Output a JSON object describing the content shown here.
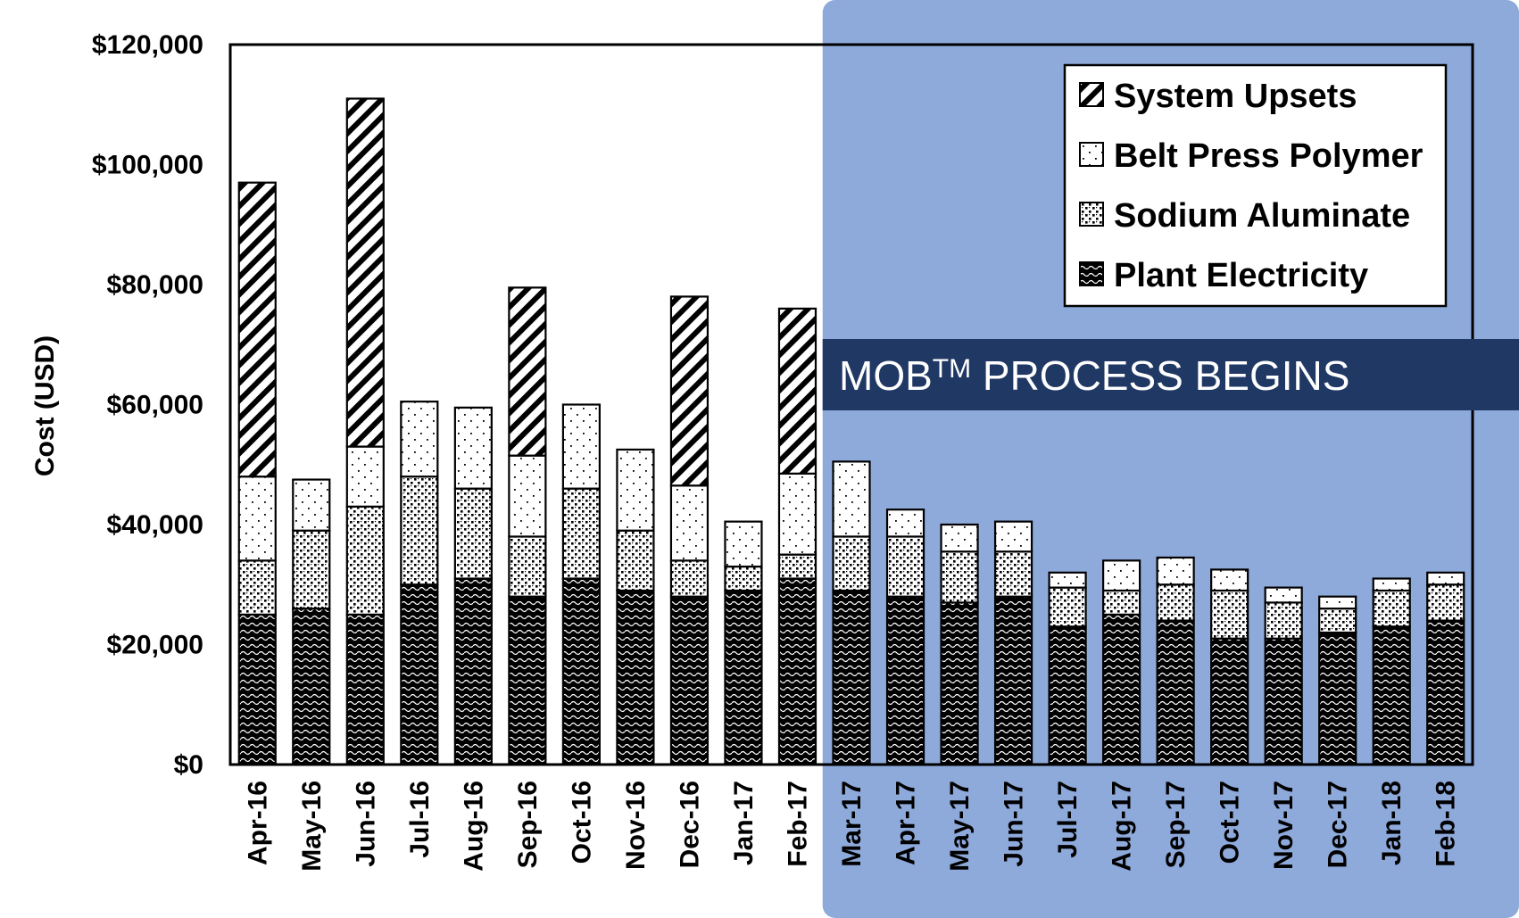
{
  "chart_data": {
    "type": "bar",
    "stacked": true,
    "ylabel": "Cost (USD)",
    "xlabel": "",
    "ylim": [
      0,
      120000
    ],
    "yticks": [
      "$0",
      "$20,000",
      "$40,000",
      "$60,000",
      "$80,000",
      "$100,000",
      "$120,000"
    ],
    "yticks_values": [
      0,
      20000,
      40000,
      60000,
      80000,
      100000,
      120000
    ],
    "categories": [
      "Apr-16",
      "May-16",
      "Jun-16",
      "Jul-16",
      "Aug-16",
      "Sep-16",
      "Oct-16",
      "Nov-16",
      "Dec-16",
      "Jan-17",
      "Feb-17",
      "Mar-17",
      "Apr-17",
      "May-17",
      "Jun-17",
      "Jul-17",
      "Aug-17",
      "Sep-17",
      "Oct-17",
      "Nov-17",
      "Dec-17",
      "Jan-18",
      "Feb-18"
    ],
    "series": [
      {
        "name": "Plant Electricity",
        "pattern": "wave",
        "values": [
          25000,
          26000,
          25000,
          30000,
          31000,
          28000,
          31000,
          29000,
          28000,
          29000,
          31000,
          29000,
          28000,
          27000,
          28000,
          23000,
          25000,
          24000,
          21000,
          21000,
          22000,
          23000,
          24000
        ]
      },
      {
        "name": "Sodium Aluminate",
        "pattern": "dense-dots",
        "values": [
          9000,
          13000,
          18000,
          18000,
          15000,
          10000,
          15000,
          10000,
          6000,
          4000,
          4000,
          9000,
          10000,
          8500,
          7500,
          6500,
          4000,
          6000,
          8000,
          6000,
          4000,
          6000,
          6000
        ]
      },
      {
        "name": "Belt Press Polymer",
        "pattern": "sparse-dots",
        "values": [
          14000,
          8500,
          10000,
          12500,
          13500,
          13500,
          14000,
          13500,
          12500,
          7500,
          13500,
          12500,
          4500,
          4500,
          5000,
          2500,
          5000,
          4500,
          3500,
          2500,
          2000,
          2000,
          2000
        ]
      },
      {
        "name": "System Upsets",
        "pattern": "diagonal",
        "values": [
          49000,
          0,
          58000,
          0,
          0,
          28000,
          0,
          0,
          31500,
          0,
          27500,
          0,
          0,
          0,
          0,
          0,
          0,
          0,
          0,
          0,
          0,
          0,
          0
        ]
      }
    ],
    "legend_order": [
      "System Upsets",
      "Belt Press Polymer",
      "Sodium Aluminate",
      "Plant Electricity"
    ],
    "legend_position": "top-right",
    "highlight_region": {
      "start_category": "Mar-17",
      "color": "#8eaadb"
    },
    "annotation": {
      "before": "MOB",
      "superscript": "TM",
      "after": " PROCESS BEGINS",
      "background": "#203864"
    },
    "grid": false
  }
}
